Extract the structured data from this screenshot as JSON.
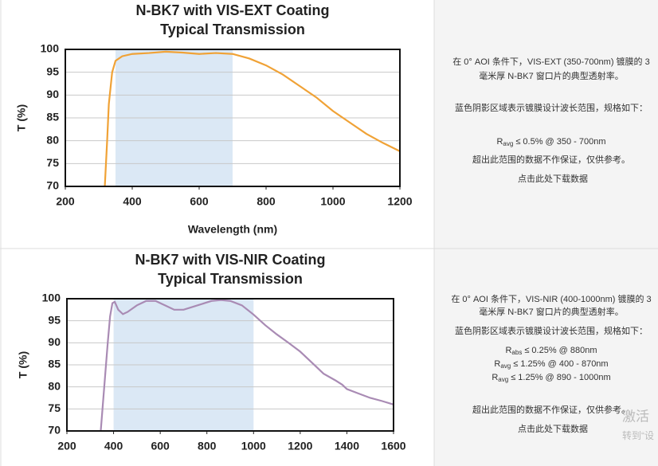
{
  "chart_data": [
    {
      "type": "line",
      "title": "N-BK7 with VIS-EXT Coating",
      "subtitle": "Typical Transmission",
      "xlabel": "Wavelength (nm)",
      "ylabel": "T (%)",
      "x": [
        318,
        325,
        330,
        340,
        350,
        370,
        400,
        450,
        500,
        550,
        600,
        650,
        700,
        750,
        800,
        850,
        900,
        950,
        1000,
        1050,
        1100,
        1150,
        1200
      ],
      "values": [
        70,
        80,
        88,
        95,
        97.5,
        98.5,
        99,
        99.2,
        99.5,
        99.3,
        99,
        99.2,
        99,
        98,
        96.5,
        94.5,
        92,
        89.5,
        86.5,
        84,
        81.5,
        79.5,
        77.7
      ],
      "color": "#f0a236",
      "shaded_range": [
        350,
        700
      ],
      "shade_color": "#dbe8f5",
      "xlim": [
        200,
        1200
      ],
      "xticks": [
        200,
        400,
        600,
        800,
        1000,
        1200
      ],
      "ylim": [
        70,
        100
      ],
      "yticks": [
        70,
        75,
        80,
        85,
        90,
        95,
        100
      ],
      "grid": true
    },
    {
      "type": "line",
      "title": "N-BK7 with VIS-NIR Coating",
      "subtitle": "Typical Transmission",
      "ylabel": "T (%)",
      "x": [
        345,
        360,
        375,
        385,
        395,
        405,
        420,
        440,
        460,
        500,
        540,
        580,
        620,
        660,
        700,
        760,
        820,
        860,
        900,
        950,
        1000,
        1050,
        1100,
        1150,
        1200,
        1250,
        1300,
        1350,
        1380,
        1400,
        1450,
        1500,
        1550,
        1600
      ],
      "values": [
        70,
        80,
        90,
        96,
        99,
        99.3,
        97.5,
        96.5,
        97,
        98.5,
        99.5,
        99.5,
        98.5,
        97.5,
        97.5,
        98.5,
        99.5,
        99.7,
        99.5,
        98.5,
        96.4,
        94,
        91.9,
        90,
        88,
        85.5,
        83,
        81.5,
        80.5,
        79.5,
        78.5,
        77.5,
        76.8,
        76
      ],
      "color": "#a98bb4",
      "shaded_range": [
        400,
        1000
      ],
      "shade_color": "#dbe8f5",
      "xlim": [
        200,
        1600
      ],
      "xticks": [
        200,
        400,
        600,
        800,
        1000,
        1200,
        1400,
        1600
      ],
      "ylim": [
        70,
        100
      ],
      "yticks": [
        70,
        75,
        80,
        85,
        90,
        95,
        100
      ],
      "grid": true
    }
  ],
  "panels": [
    {
      "lines": [
        "在 0° AOI 条件下，VIS-EXT (350-700nm) 镀膜的 3",
        "毫米厚 N-BK7 窗口片的典型透射率。",
        "蓝色阴影区域表示镀膜设计波长范围，规格如下："
      ],
      "specs": [
        {
          "symbol": "R",
          "sub": "avg",
          "text": "≤ 0.5% @ 350 - 700nm"
        }
      ],
      "note": "超出此范围的数据不作保证，仅供参考。",
      "link": "点击此处下载数据"
    },
    {
      "lines": [
        "在 0° AOI 条件下，VIS-NIR (400-1000nm) 镀膜的 3",
        "毫米厚 N-BK7 窗口片的典型透射率。",
        "蓝色阴影区域表示镀膜设计波长范围，规格如下："
      ],
      "specs": [
        {
          "symbol": "R",
          "sub": "abs",
          "text": "≤ 0.25% @ 880nm"
        },
        {
          "symbol": "R",
          "sub": "avg",
          "text": "≤ 1.25% @ 400 - 870nm"
        },
        {
          "symbol": "R",
          "sub": "avg",
          "text": "≤ 1.25% @ 890 - 1000nm"
        }
      ],
      "note": "超出此范围的数据不作保证，仅供参考。",
      "link": "点击此处下载数据"
    }
  ],
  "watermark": [
    "激活",
    "转到“设"
  ]
}
